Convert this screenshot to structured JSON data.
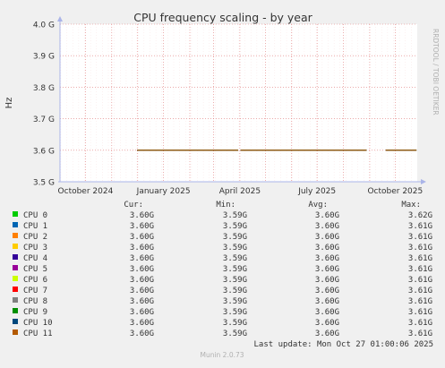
{
  "colors": {
    "background": "#f0f0f0",
    "plot_background": "#ffffff",
    "grid_major": "#e07a7a",
    "grid_minor": "#f0b0b0",
    "axis": "#aab4e8",
    "text": "#333333"
  },
  "chart_data": {
    "type": "line",
    "title": "CPU frequency scaling - by year",
    "xlabel": "",
    "ylabel": "Hz",
    "ylim": [
      3.5,
      4.0
    ],
    "xlim": [
      "2024-09-01",
      "2025-10-27"
    ],
    "grid": true,
    "legend_placement": "bottom",
    "y_ticks": [
      {
        "value": 4.0,
        "label": "4.0 G"
      },
      {
        "value": 3.9,
        "label": "3.9 G"
      },
      {
        "value": 3.8,
        "label": "3.8 G"
      },
      {
        "value": 3.7,
        "label": "3.7 G"
      },
      {
        "value": 3.6,
        "label": "3.6 G"
      },
      {
        "value": 3.5,
        "label": "3.5 G"
      }
    ],
    "x_ticks": [
      {
        "date": "2024-10-01",
        "label": "October 2024"
      },
      {
        "date": "2025-01-01",
        "label": "January 2025"
      },
      {
        "date": "2025-04-01",
        "label": "April 2025"
      },
      {
        "date": "2025-07-01",
        "label": "July 2025"
      },
      {
        "date": "2025-10-01",
        "label": "October 2025"
      }
    ],
    "month_gridlines": [
      "2024-11-01",
      "2024-12-01",
      "2025-02-01",
      "2025-03-01",
      "2025-05-01",
      "2025-06-01",
      "2025-08-01",
      "2025-09-01"
    ],
    "series_segments": [
      {
        "start": "2024-12-01",
        "end": "2025-03-30",
        "value": 3.6
      },
      {
        "start": "2025-04-02",
        "end": "2025-08-28",
        "value": 3.6
      },
      {
        "start": "2025-09-20",
        "end": "2025-10-26",
        "value": 3.6
      }
    ],
    "series": [
      {
        "name": "CPU 0",
        "color": "#00cc00",
        "cur": "3.60G",
        "min": "3.59G",
        "avg": "3.60G",
        "max": "3.62G"
      },
      {
        "name": "CPU 1",
        "color": "#0066b3",
        "cur": "3.60G",
        "min": "3.59G",
        "avg": "3.60G",
        "max": "3.61G"
      },
      {
        "name": "CPU 2",
        "color": "#ff8000",
        "cur": "3.60G",
        "min": "3.59G",
        "avg": "3.60G",
        "max": "3.61G"
      },
      {
        "name": "CPU 3",
        "color": "#ffcc00",
        "cur": "3.60G",
        "min": "3.59G",
        "avg": "3.60G",
        "max": "3.61G"
      },
      {
        "name": "CPU 4",
        "color": "#330099",
        "cur": "3.60G",
        "min": "3.59G",
        "avg": "3.60G",
        "max": "3.61G"
      },
      {
        "name": "CPU 5",
        "color": "#990099",
        "cur": "3.60G",
        "min": "3.59G",
        "avg": "3.60G",
        "max": "3.61G"
      },
      {
        "name": "CPU 6",
        "color": "#ccff00",
        "cur": "3.60G",
        "min": "3.59G",
        "avg": "3.60G",
        "max": "3.61G"
      },
      {
        "name": "CPU 7",
        "color": "#ff0000",
        "cur": "3.60G",
        "min": "3.59G",
        "avg": "3.60G",
        "max": "3.61G"
      },
      {
        "name": "CPU 8",
        "color": "#808080",
        "cur": "3.60G",
        "min": "3.59G",
        "avg": "3.60G",
        "max": "3.61G"
      },
      {
        "name": "CPU 9",
        "color": "#008f00",
        "cur": "3.60G",
        "min": "3.59G",
        "avg": "3.60G",
        "max": "3.61G"
      },
      {
        "name": "CPU 10",
        "color": "#00487d",
        "cur": "3.60G",
        "min": "3.59G",
        "avg": "3.60G",
        "max": "3.61G"
      },
      {
        "name": "CPU 11",
        "color": "#b35a00",
        "cur": "3.60G",
        "min": "3.59G",
        "avg": "3.60G",
        "max": "3.61G"
      }
    ]
  },
  "legend": {
    "header_cur": "Cur:",
    "header_min": "Min:",
    "header_avg": "Avg:",
    "header_max": "Max:"
  },
  "footer": {
    "last_update": "Last update: Mon Oct 27 01:00:06 2025",
    "version": "Munin 2.0.73"
  },
  "watermark": "RRDTOOL / TOBI OETIKER"
}
